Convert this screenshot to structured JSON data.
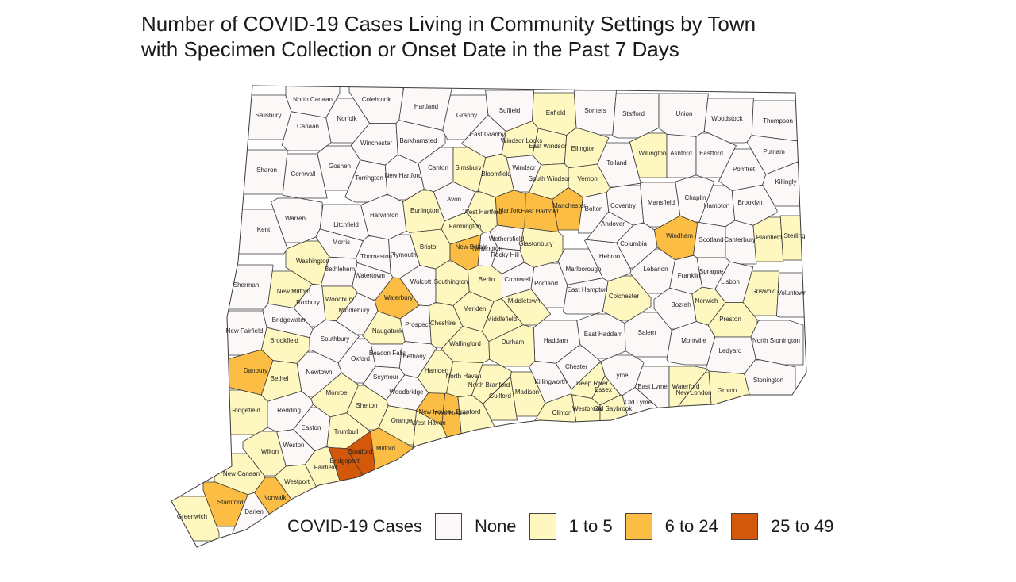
{
  "title": {
    "line1": "Number of COVID-19 Cases Living in Community Settings by Town",
    "line2": "with Specimen Collection or Onset Date in the Past 7 Days"
  },
  "legend": {
    "title": "COVID-19 Cases",
    "items": [
      {
        "label": "None",
        "color": "#fdf8f8"
      },
      {
        "label": "1 to 5",
        "color": "#fff7c0"
      },
      {
        "label": "6 to 24",
        "color": "#fcbd45"
      },
      {
        "label": "25 to 49",
        "color": "#d4580a"
      }
    ]
  },
  "towns": [
    {
      "name": "North Canaan",
      "cat": 0
    },
    {
      "name": "Colebrook",
      "cat": 0
    },
    {
      "name": "Hartland",
      "cat": 0
    },
    {
      "name": "Salisbury",
      "cat": 0
    },
    {
      "name": "Canaan",
      "cat": 0
    },
    {
      "name": "Norfolk",
      "cat": 0
    },
    {
      "name": "Granby",
      "cat": 0
    },
    {
      "name": "Suffield",
      "cat": 0
    },
    {
      "name": "Enfield",
      "cat": 1
    },
    {
      "name": "Somers",
      "cat": 0
    },
    {
      "name": "Stafford",
      "cat": 0
    },
    {
      "name": "Union",
      "cat": 0
    },
    {
      "name": "Woodstock",
      "cat": 0
    },
    {
      "name": "Thompson",
      "cat": 0
    },
    {
      "name": "Winchester",
      "cat": 0
    },
    {
      "name": "Barkhamsted",
      "cat": 0
    },
    {
      "name": "East Granby",
      "cat": 0
    },
    {
      "name": "Windsor Locks",
      "cat": 1
    },
    {
      "name": "East Windsor",
      "cat": 1
    },
    {
      "name": "Ellington",
      "cat": 1
    },
    {
      "name": "Willington",
      "cat": 1
    },
    {
      "name": "Ashford",
      "cat": 0
    },
    {
      "name": "Eastford",
      "cat": 0
    },
    {
      "name": "Putnam",
      "cat": 0
    },
    {
      "name": "Sharon",
      "cat": 0
    },
    {
      "name": "Cornwall",
      "cat": 0
    },
    {
      "name": "Goshen",
      "cat": 0
    },
    {
      "name": "Torrington",
      "cat": 0
    },
    {
      "name": "New Hartford",
      "cat": 0
    },
    {
      "name": "Canton",
      "cat": 0
    },
    {
      "name": "Simsbury",
      "cat": 1
    },
    {
      "name": "Bloomfield",
      "cat": 1
    },
    {
      "name": "Windsor",
      "cat": 0
    },
    {
      "name": "South Windsor",
      "cat": 1
    },
    {
      "name": "Vernon",
      "cat": 1
    },
    {
      "name": "Tolland",
      "cat": 0
    },
    {
      "name": "Pomfret",
      "cat": 0
    },
    {
      "name": "Killingly",
      "cat": 0
    },
    {
      "name": "Avon",
      "cat": 0
    },
    {
      "name": "West Hartford",
      "cat": 1
    },
    {
      "name": "Hartford",
      "cat": 2
    },
    {
      "name": "East Hartford",
      "cat": 2
    },
    {
      "name": "Manchester",
      "cat": 2
    },
    {
      "name": "Bolton",
      "cat": 0
    },
    {
      "name": "Coventry",
      "cat": 0
    },
    {
      "name": "Mansfield",
      "cat": 0
    },
    {
      "name": "Chaplin",
      "cat": 0
    },
    {
      "name": "Hampton",
      "cat": 0
    },
    {
      "name": "Brooklyn",
      "cat": 0
    },
    {
      "name": "Warren",
      "cat": 0
    },
    {
      "name": "Harwinton",
      "cat": 0
    },
    {
      "name": "Burlington",
      "cat": 1
    },
    {
      "name": "Kent",
      "cat": 0
    },
    {
      "name": "Litchfield",
      "cat": 0
    },
    {
      "name": "Farmington",
      "cat": 1
    },
    {
      "name": "Andover",
      "cat": 0
    },
    {
      "name": "Windham",
      "cat": 2
    },
    {
      "name": "Scotland",
      "cat": 0
    },
    {
      "name": "Canterbury",
      "cat": 0
    },
    {
      "name": "Plainfield",
      "cat": 1
    },
    {
      "name": "Sterling",
      "cat": 1
    },
    {
      "name": "Morris",
      "cat": 0
    },
    {
      "name": "Bristol",
      "cat": 1
    },
    {
      "name": "New Britain",
      "cat": 2
    },
    {
      "name": "Newington",
      "cat": 0
    },
    {
      "name": "Wethersfield",
      "cat": 0
    },
    {
      "name": "Glastonbury",
      "cat": 1
    },
    {
      "name": "Washington",
      "cat": 1
    },
    {
      "name": "Thomaston",
      "cat": 0
    },
    {
      "name": "Plymouth",
      "cat": 0
    },
    {
      "name": "Rocky Hill",
      "cat": 0
    },
    {
      "name": "Hebron",
      "cat": 0
    },
    {
      "name": "Columbia",
      "cat": 0
    },
    {
      "name": "Bethlehem",
      "cat": 0
    },
    {
      "name": "Watertown",
      "cat": 0
    },
    {
      "name": "Marlborough",
      "cat": 0
    },
    {
      "name": "Lebanon",
      "cat": 0
    },
    {
      "name": "Franklin",
      "cat": 0
    },
    {
      "name": "Sprague",
      "cat": 0
    },
    {
      "name": "Sherman",
      "cat": 0
    },
    {
      "name": "New Milford",
      "cat": 1
    },
    {
      "name": "Wolcott",
      "cat": 0
    },
    {
      "name": "Southington",
      "cat": 1
    },
    {
      "name": "Berlin",
      "cat": 1
    },
    {
      "name": "Cromwell",
      "cat": 0
    },
    {
      "name": "Portland",
      "cat": 0
    },
    {
      "name": "Lisbon",
      "cat": 0
    },
    {
      "name": "Griswold",
      "cat": 1
    },
    {
      "name": "Voluntown",
      "cat": 0
    },
    {
      "name": "Roxbury",
      "cat": 0
    },
    {
      "name": "Woodbury",
      "cat": 1
    },
    {
      "name": "Waterbury",
      "cat": 2
    },
    {
      "name": "East Hampton",
      "cat": 0
    },
    {
      "name": "Colchester",
      "cat": 1
    },
    {
      "name": "Middletown",
      "cat": 1
    },
    {
      "name": "Bozrah",
      "cat": 0
    },
    {
      "name": "Norwich",
      "cat": 1
    },
    {
      "name": "Bridgewater",
      "cat": 0
    },
    {
      "name": "Middlebury",
      "cat": 0
    },
    {
      "name": "Meriden",
      "cat": 1
    },
    {
      "name": "Middlefield",
      "cat": 1
    },
    {
      "name": "Preston",
      "cat": 1
    },
    {
      "name": "New Fairfield",
      "cat": 0
    },
    {
      "name": "Prospect",
      "cat": 0
    },
    {
      "name": "Cheshire",
      "cat": 1
    },
    {
      "name": "Brookfield",
      "cat": 1
    },
    {
      "name": "Southbury",
      "cat": 0
    },
    {
      "name": "Naugatuck",
      "cat": 1
    },
    {
      "name": "Haddam",
      "cat": 0
    },
    {
      "name": "East Haddam",
      "cat": 0
    },
    {
      "name": "Salem",
      "cat": 0
    },
    {
      "name": "Montville",
      "cat": 0
    },
    {
      "name": "North Stonington",
      "cat": 0
    },
    {
      "name": "Wallingford",
      "cat": 1
    },
    {
      "name": "Durham",
      "cat": 1
    },
    {
      "name": "Ledyard",
      "cat": 0
    },
    {
      "name": "Danbury",
      "cat": 2
    },
    {
      "name": "Oxford",
      "cat": 0
    },
    {
      "name": "Beacon Falls",
      "cat": 0
    },
    {
      "name": "Bethany",
      "cat": 0
    },
    {
      "name": "Newtown",
      "cat": 0
    },
    {
      "name": "Bethel",
      "cat": 1
    },
    {
      "name": "Hamden",
      "cat": 1
    },
    {
      "name": "Seymour",
      "cat": 0
    },
    {
      "name": "North Haven",
      "cat": 1
    },
    {
      "name": "Chester",
      "cat": 0
    },
    {
      "name": "Lyme",
      "cat": 0
    },
    {
      "name": "North Branford",
      "cat": 1
    },
    {
      "name": "Killingworth",
      "cat": 0
    },
    {
      "name": "Deep River",
      "cat": 1
    },
    {
      "name": "Monroe",
      "cat": 1
    },
    {
      "name": "Woodbridge",
      "cat": 0
    },
    {
      "name": "Guilford",
      "cat": 1
    },
    {
      "name": "Essex",
      "cat": 1
    },
    {
      "name": "East Lyme",
      "cat": 0
    },
    {
      "name": "Waterford",
      "cat": 1
    },
    {
      "name": "Groton",
      "cat": 1
    },
    {
      "name": "Stonington",
      "cat": 0
    },
    {
      "name": "Ridgefield",
      "cat": 1
    },
    {
      "name": "Redding",
      "cat": 0
    },
    {
      "name": "Shelton",
      "cat": 1
    },
    {
      "name": "Madison",
      "cat": 1
    },
    {
      "name": "New London",
      "cat": 1
    },
    {
      "name": "New Haven",
      "cat": 2
    },
    {
      "name": "East Haven",
      "cat": 2
    },
    {
      "name": "Branford",
      "cat": 1
    },
    {
      "name": "Westbrook",
      "cat": 1
    },
    {
      "name": "Old Saybrook",
      "cat": 1
    },
    {
      "name": "Old Lyme",
      "cat": 0
    },
    {
      "name": "Clinton",
      "cat": 1
    },
    {
      "name": "West Haven",
      "cat": 1
    },
    {
      "name": "Orange",
      "cat": 1
    },
    {
      "name": "Easton",
      "cat": 0
    },
    {
      "name": "Trumbull",
      "cat": 1
    },
    {
      "name": "Milford",
      "cat": 2
    },
    {
      "name": "Wilton",
      "cat": 1
    },
    {
      "name": "Weston",
      "cat": 0
    },
    {
      "name": "Stratford",
      "cat": 3
    },
    {
      "name": "Bridgeport",
      "cat": 3
    },
    {
      "name": "Fairfield",
      "cat": 1
    },
    {
      "name": "New Canaan",
      "cat": 1
    },
    {
      "name": "Westport",
      "cat": 1
    },
    {
      "name": "Norwalk",
      "cat": 2
    },
    {
      "name": "Stamford",
      "cat": 2
    },
    {
      "name": "Greenwich",
      "cat": 1
    },
    {
      "name": "Darien",
      "cat": 0
    }
  ]
}
